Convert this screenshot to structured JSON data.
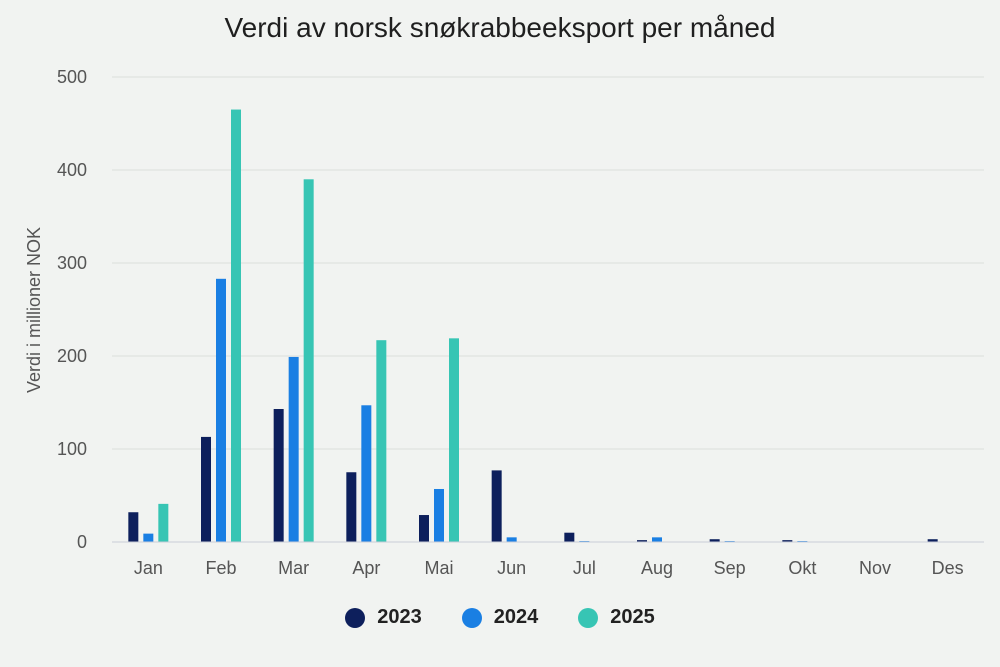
{
  "title": "Verdi av norsk snøkrabbeeksport per måned",
  "chart_data": {
    "type": "bar",
    "title": "Verdi av norsk snøkrabbeeksport per måned",
    "xlabel": "",
    "ylabel": "Verdi i millioner NOK",
    "ylim": [
      0,
      500
    ],
    "yticks": [
      0,
      100,
      200,
      300,
      400,
      500
    ],
    "grid": true,
    "legend_position": "bottom",
    "categories": [
      "Jan",
      "Feb",
      "Mar",
      "Apr",
      "Mai",
      "Jun",
      "Jul",
      "Aug",
      "Sep",
      "Okt",
      "Nov",
      "Des"
    ],
    "series": [
      {
        "name": "2023",
        "color": "#0d1f5c",
        "values": [
          32,
          113,
          143,
          75,
          29,
          77,
          10,
          2,
          3,
          2,
          0,
          3
        ]
      },
      {
        "name": "2024",
        "color": "#1a7fe3",
        "values": [
          9,
          283,
          199,
          147,
          57,
          5,
          1,
          5,
          1,
          1,
          0,
          0
        ]
      },
      {
        "name": "2025",
        "color": "#37c5b4",
        "values": [
          41,
          465,
          390,
          217,
          219,
          0,
          0,
          0,
          0,
          0,
          0,
          0
        ]
      }
    ]
  }
}
